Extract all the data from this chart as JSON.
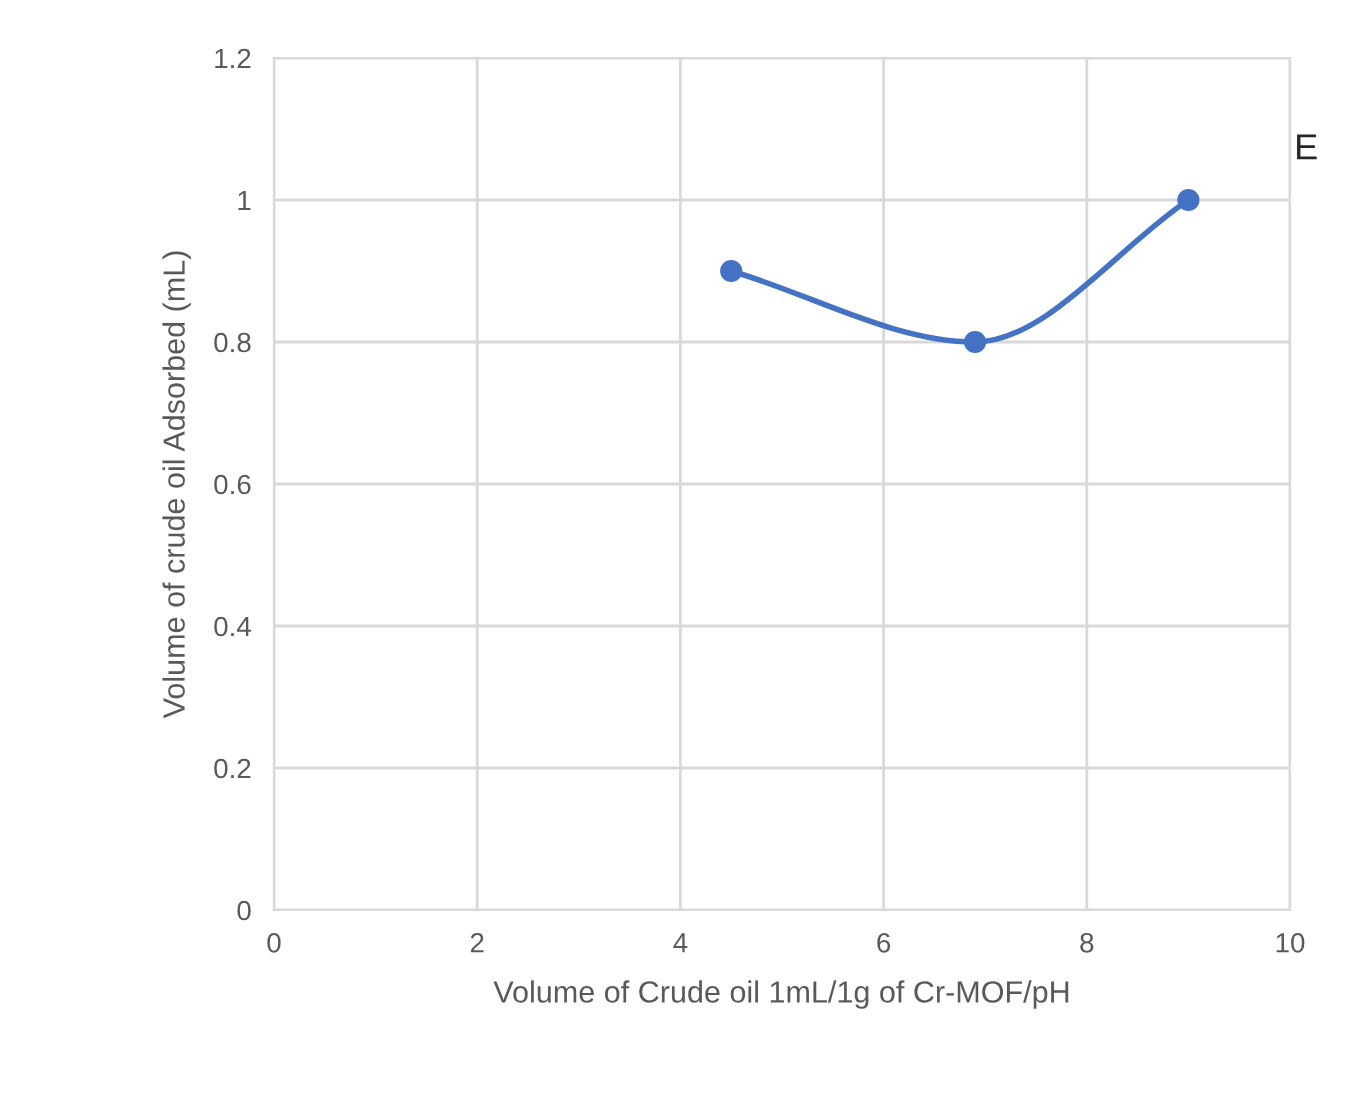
{
  "chart_data": {
    "type": "line",
    "xlabel": "Volume of Crude oil 1mL/1g of Cr-MOF/pH",
    "ylabel": "Volume of crude oil Adsorbed (mL)",
    "annotations": [
      "E"
    ],
    "series": [
      {
        "color": "#4472c4",
        "x": [
          4.5,
          6.9,
          9
        ],
        "values": [
          0.9,
          0.8,
          1.0
        ]
      }
    ],
    "xlim": [
      0,
      10
    ],
    "xticks": [
      0,
      2,
      4,
      6,
      8,
      10
    ],
    "ylim": [
      0,
      1.2
    ],
    "yticks": [
      0,
      0.2,
      0.4,
      0.6,
      0.8,
      1,
      1.2
    ],
    "grid": true,
    "marker": "circle",
    "line_style": "solid"
  }
}
